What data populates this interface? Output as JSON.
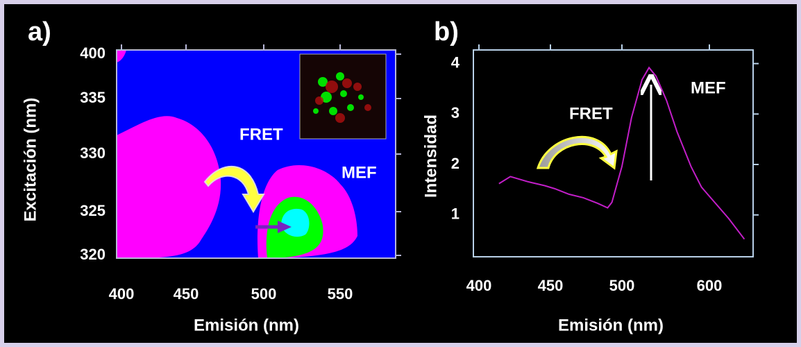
{
  "chart_data": [
    {
      "type": "contour",
      "panel_label": "a)",
      "x_label": "Emisión (nm)",
      "y_label": "Excitación (nm)",
      "annotations": [
        "FRET",
        "MEF"
      ],
      "xlim": [
        397,
        586
      ],
      "xticks": [
        400,
        450,
        500,
        550
      ],
      "ylim": [
        319.7,
        406
      ],
      "yticks": [
        320,
        325,
        330,
        335,
        400
      ]
    },
    {
      "type": "line",
      "panel_label": "b)",
      "x_label": "Emisión (nm)",
      "y_label": "Intensidad",
      "annotations": [
        "FRET",
        "MEF"
      ],
      "xlim": [
        396,
        650
      ],
      "xticks": [
        400,
        450,
        500,
        600
      ],
      "ylim": [
        0.17,
        4.27
      ],
      "yticks": [
        1,
        2,
        3,
        4
      ],
      "x": [
        414,
        422,
        434,
        446,
        453,
        463,
        473,
        483,
        490,
        493,
        500,
        511,
        523,
        531,
        539,
        551,
        563,
        579,
        591,
        606,
        622,
        640
      ],
      "series": [
        {
          "color": "#c21ec8",
          "values": [
            1.62,
            1.76,
            1.66,
            1.58,
            1.52,
            1.41,
            1.34,
            1.23,
            1.14,
            1.25,
            1.96,
            2.93,
            3.68,
            3.92,
            3.75,
            3.27,
            2.65,
            1.96,
            1.55,
            1.25,
            0.93,
            0.52
          ]
        }
      ]
    }
  ]
}
